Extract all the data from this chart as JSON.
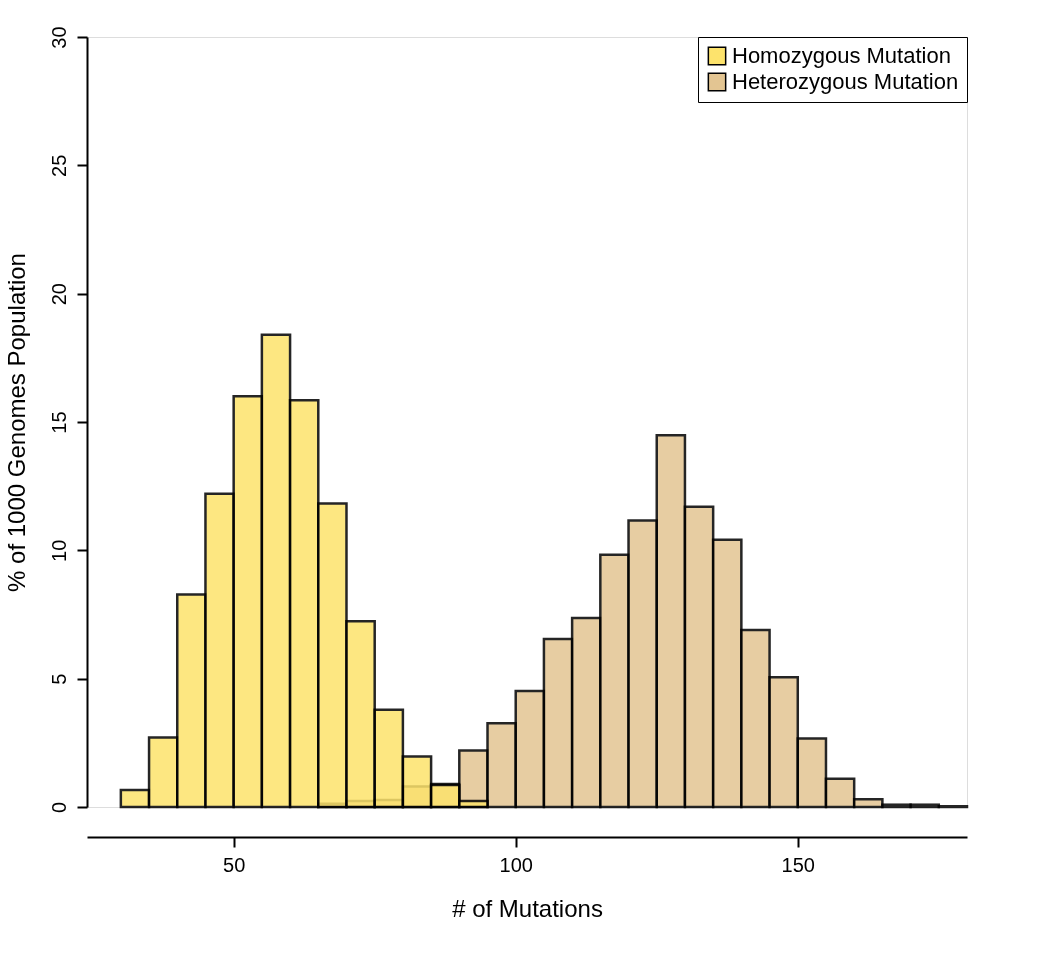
{
  "chart_data": {
    "type": "histogram",
    "xlabel": "# of Mutations",
    "ylabel": "% of 1000 Genomes Population",
    "xlim": [
      24,
      180
    ],
    "xticks": [
      50,
      100,
      150
    ],
    "ylim": [
      0,
      30
    ],
    "yticks": [
      0,
      5,
      10,
      15,
      20,
      25,
      30
    ],
    "legend": "top right",
    "bins": [
      30,
      35,
      40,
      45,
      50,
      55,
      60,
      65,
      70,
      75,
      80,
      85,
      90,
      95,
      100,
      105,
      110,
      115,
      120,
      125,
      130,
      135,
      140,
      145,
      150,
      155,
      160,
      165,
      170,
      175,
      180
    ],
    "series": [
      {
        "name": "Heterozygous Mutation",
        "color": "#e3c592",
        "values": [
          null,
          null,
          null,
          null,
          null,
          null,
          null,
          0.13,
          0.23,
          0.27,
          0.8,
          0.9,
          2.2,
          3.26,
          4.52,
          6.55,
          7.36,
          9.83,
          11.16,
          14.48,
          11.7,
          10.41,
          6.9,
          5.06,
          2.67,
          1.1,
          0.3,
          0.09,
          0.09,
          0.03
        ]
      },
      {
        "name": "Homozygous Mutation",
        "color": "#fde36c",
        "values": [
          0.66,
          2.71,
          8.28,
          12.2,
          16.0,
          18.4,
          15.85,
          11.82,
          7.24,
          3.79,
          1.97,
          0.86,
          0.23,
          null,
          null,
          null,
          null,
          null,
          null,
          null,
          null,
          null,
          null,
          null,
          null,
          null,
          null,
          null,
          null,
          null
        ]
      }
    ]
  }
}
